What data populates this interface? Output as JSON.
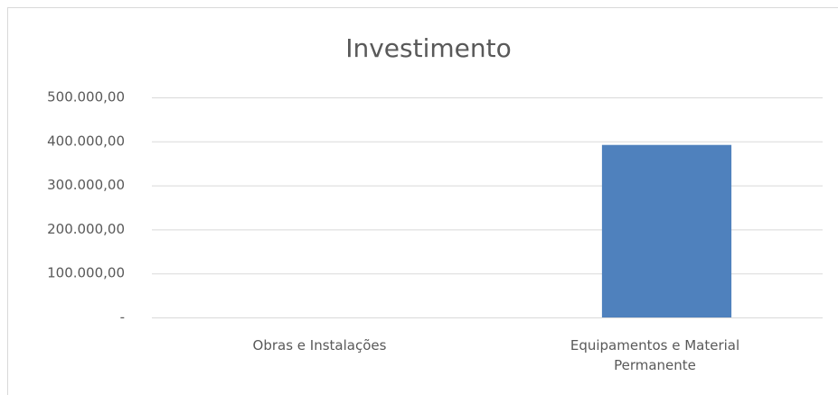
{
  "chart_data": {
    "type": "bar",
    "title": "Investimento",
    "categories": [
      "Obras e Instalações",
      "Equipamentos e Material Permanente"
    ],
    "values": [
      0,
      392000
    ],
    "color": "#4f81bd",
    "ylim": [
      0,
      500000
    ],
    "yticks": [
      {
        "value": 0,
        "label": "-"
      },
      {
        "value": 100000,
        "label": "100.000,00"
      },
      {
        "value": 200000,
        "label": "200.000,00"
      },
      {
        "value": 300000,
        "label": "300.000,00"
      },
      {
        "value": 400000,
        "label": "400.000,00"
      },
      {
        "value": 500000,
        "label": "500.000,00"
      }
    ],
    "grid": true
  }
}
